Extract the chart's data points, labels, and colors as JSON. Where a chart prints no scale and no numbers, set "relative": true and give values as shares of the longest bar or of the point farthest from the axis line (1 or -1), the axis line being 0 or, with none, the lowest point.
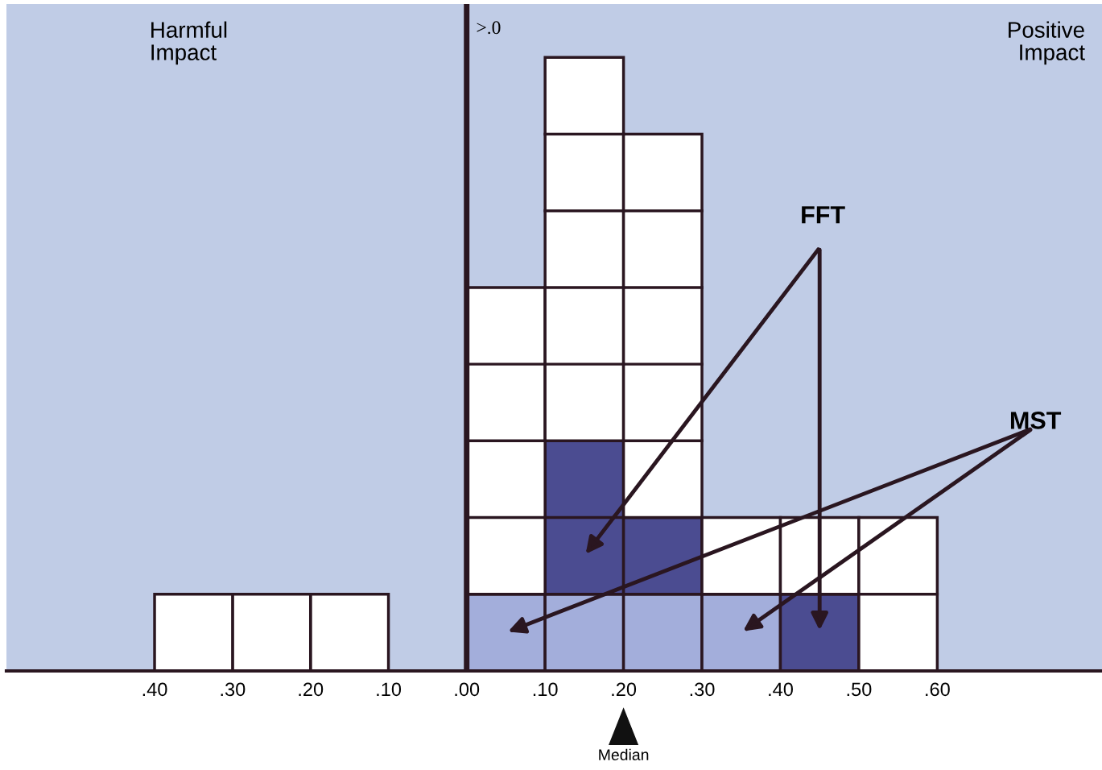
{
  "chart_data": [
    {
      "type": "bar",
      "relative": true,
      "stacked": true,
      "x": [
        0.15,
        0.25,
        0.35
      ],
      "series": [
        {
          "color": "#ffffff",
          "values": [
            1,
            1,
            1
          ]
        }
      ],
      "xlim": [
        0.59,
        0.05
      ],
      "xticks": [
        {
          "value": 0.4,
          "label": ".40"
        },
        {
          "value": 0.3,
          "label": ".30"
        },
        {
          "value": 0.2,
          "label": ".20"
        },
        {
          "value": 0.1,
          "label": ".10"
        }
      ],
      "annotations": [
        "Harmful\nImpact"
      ],
      "grid": false
    },
    {
      "type": "bar",
      "relative": true,
      "stacked": true,
      "x": [
        0.05,
        0.15,
        0.25,
        0.35,
        0.45,
        0.55
      ],
      "series": [
        {
          "name": "MST",
          "color": "#a3aedb",
          "values": [
            0.125,
            0.125,
            0.125,
            0.125,
            0,
            0
          ]
        },
        {
          "name": "FFT",
          "color": "#4b4c91",
          "values": [
            0,
            0.25,
            0.125,
            0,
            0.125,
            0
          ]
        },
        {
          "color": "#ffffff",
          "values": [
            0.5,
            0.625,
            0.625,
            0.125,
            0.125,
            0.25
          ]
        }
      ],
      "xlim": [
        -0.05,
        0.81
      ],
      "xticks": [
        {
          "value": 0.0,
          "label": ".00"
        },
        {
          "value": 0.1,
          "label": ".10"
        },
        {
          "value": 0.2,
          "label": ".20"
        },
        {
          "value": 0.3,
          "label": ".30"
        },
        {
          "value": 0.4,
          "label": ".40"
        },
        {
          "value": 0.5,
          "label": ".50"
        },
        {
          "value": 0.6,
          "label": ".60"
        }
      ],
      "ref_lines": [
        {
          "axis": "x",
          "value": 0.0,
          "label": ">.0",
          "color": "#2a1620"
        }
      ],
      "annotations": [
        "Positive\nImpact",
        "Median"
      ],
      "grid": false
    }
  ]
}
